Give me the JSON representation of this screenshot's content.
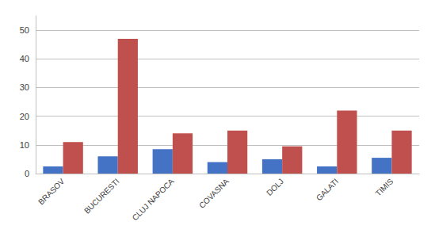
{
  "chart_data": {
    "type": "bar",
    "categories": [
      "BRASOV",
      "BUCURESTI",
      "CLUJ NAPOCA",
      "COVASNA",
      "DOLJ",
      "GALATI",
      "TIMIS"
    ],
    "series": [
      {
        "color": "#4472C4",
        "values": [
          2.5,
          6,
          8.5,
          4,
          5,
          2.5,
          5.5
        ]
      },
      {
        "color": "#C0504D",
        "values": [
          11,
          47,
          14,
          15,
          9.5,
          22,
          15
        ]
      }
    ],
    "ylim": [
      0,
      55
    ],
    "yticks": [
      0,
      10,
      20,
      30,
      40,
      50
    ],
    "grid": true
  }
}
